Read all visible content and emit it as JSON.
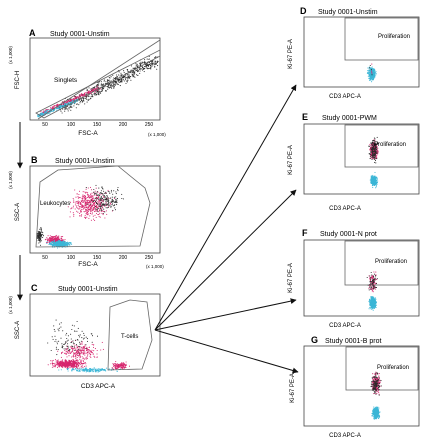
{
  "panels": {
    "A": {
      "letter": "A",
      "title": "Study 0001-Unstim",
      "ylabel": "FSC-H",
      "xlabel": "FSC-A",
      "xunit": "(x 1,000)",
      "yunit": "(x 1,000)",
      "gate": "Singlets",
      "xticks": [
        "50",
        "100",
        "150",
        "200",
        "250"
      ]
    },
    "B": {
      "letter": "B",
      "title": "Study 0001-Unstim",
      "ylabel": "SSC-A",
      "xlabel": "FSC-A",
      "xunit": "(x 1,000)",
      "yunit": "(x 1,000)",
      "gate": "Leukocytes",
      "xticks": [
        "50",
        "100",
        "150",
        "200",
        "250"
      ]
    },
    "C": {
      "letter": "C",
      "title": "Study 0001-Unstim",
      "ylabel": "SSC-A",
      "xlabel": "CD3 APC-A",
      "yunit": "(x 1,000)",
      "gate": "T-cells"
    },
    "D": {
      "letter": "D",
      "title": "Study 0001-Unstim",
      "ylabel": "Ki-67 PE-A",
      "xlabel": "CD3 APC-A",
      "gate": "Proliferation"
    },
    "E": {
      "letter": "E",
      "title": "Study 0001-PWM",
      "ylabel": "Ki-67 PE-A",
      "xlabel": "CD3 APC-A",
      "gate": "Proliferation"
    },
    "F": {
      "letter": "F",
      "title": "Study 0001-N prot",
      "ylabel": "Ki-67 PE-A",
      "xlabel": "CD3 APC-A",
      "gate": "Proliferation"
    },
    "G": {
      "letter": "G",
      "title": "Study 0001-B prot",
      "ylabel": "Ki-67 PE-A",
      "xlabel": "CD3 APC-A",
      "gate": "Proliferation"
    }
  },
  "colors": {
    "black": "#2a2a2a",
    "magenta": "#d6266e",
    "cyan": "#3bb6d6",
    "gate": "#666666"
  }
}
